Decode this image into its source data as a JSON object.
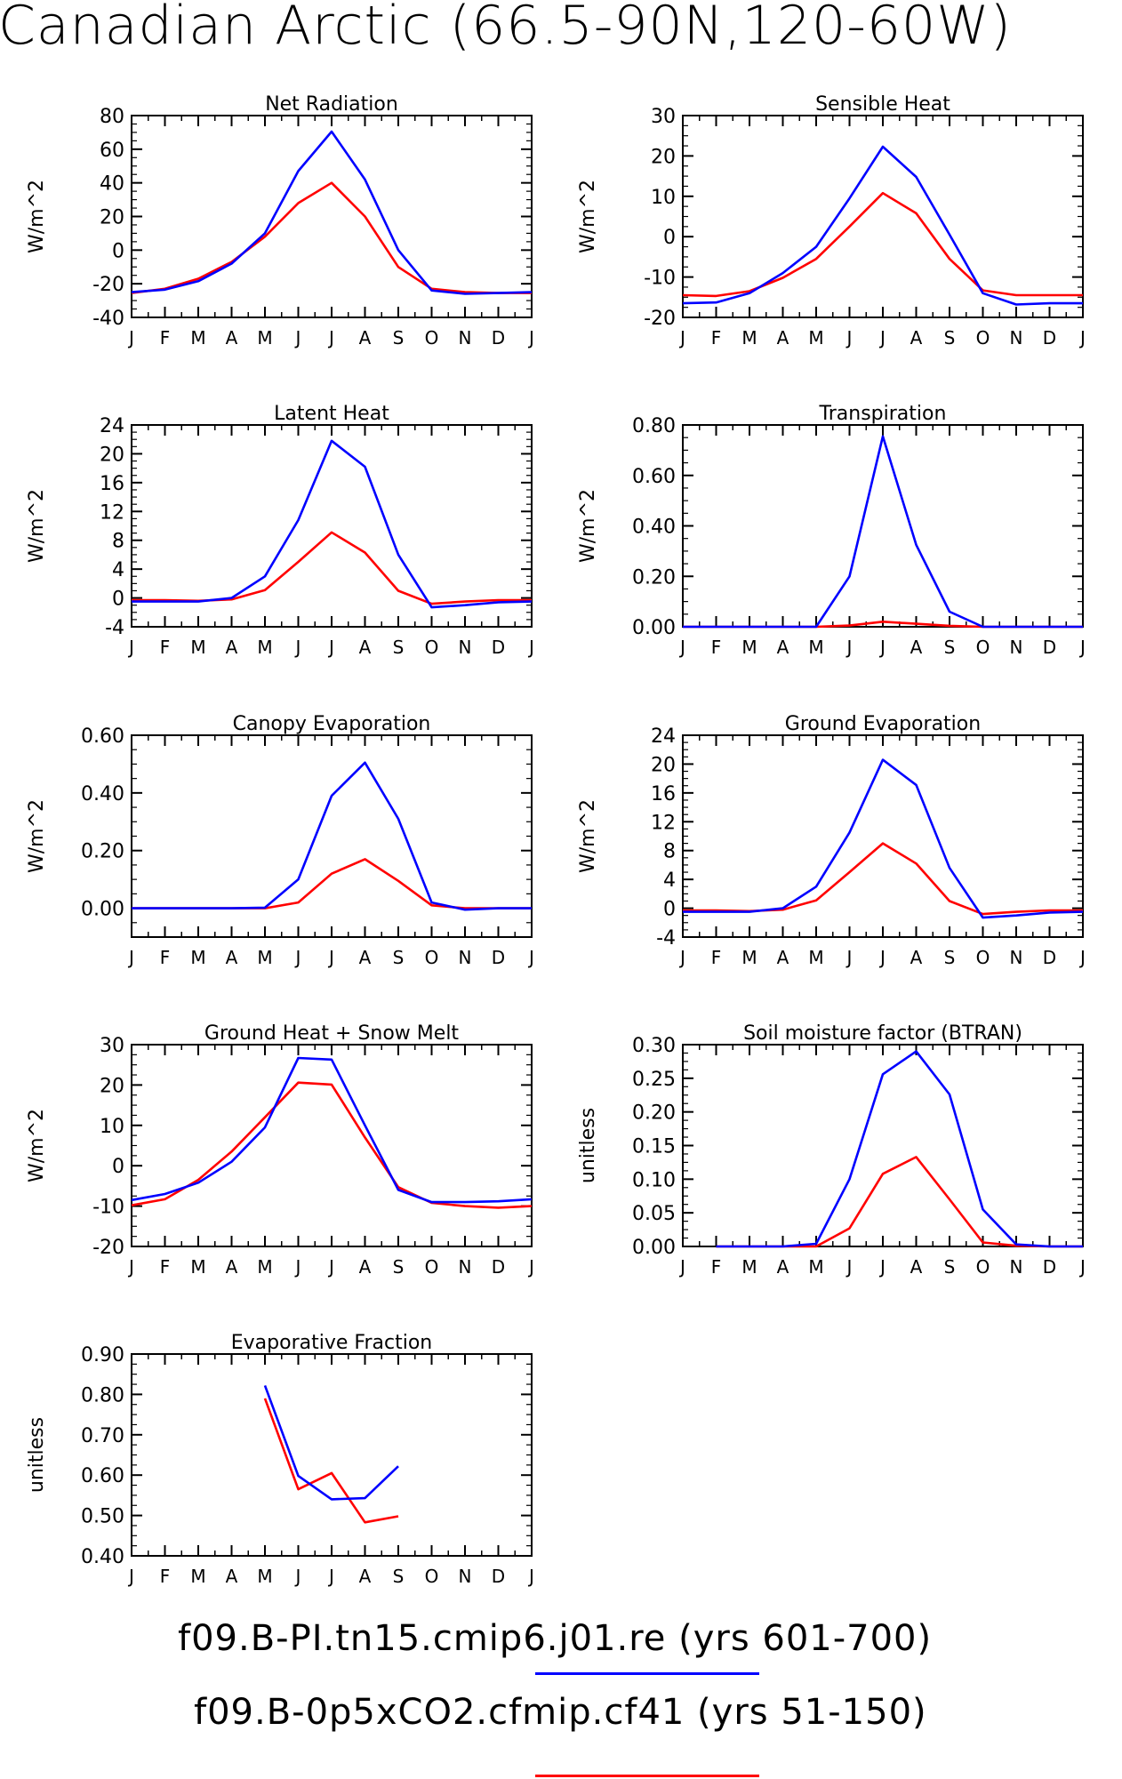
{
  "title": "Canadian Arctic (66.5-90N,120-60W)",
  "legend": [
    {
      "label": "f09.B-PI.tn15.cmip6.j01.re (yrs 601-700)",
      "color": "#0000ff"
    },
    {
      "label": "f09.B-0p5xCO2.cfmip.cf41 (yrs 51-150)",
      "color": "#ff0000"
    }
  ],
  "colors": {
    "run1": "#0000ff",
    "run2": "#ff0000"
  },
  "chart_data": [
    {
      "type": "line",
      "title": "Net Radiation",
      "ylabel": "W/m^2",
      "x": [
        "J",
        "F",
        "M",
        "A",
        "M",
        "J",
        "J",
        "A",
        "S",
        "O",
        "N",
        "D",
        "J"
      ],
      "ylim": [
        -40,
        80
      ],
      "yticks": [
        -40,
        -20,
        0,
        20,
        40,
        60,
        80
      ],
      "yticklabels": [
        "-40",
        "-20",
        "0",
        "20",
        "40",
        "60",
        "80"
      ],
      "series": [
        {
          "values": [
            -25,
            -23.5,
            -18.5,
            -8,
            10,
            47,
            70.5,
            42,
            0,
            -24,
            -26,
            -25.5,
            -25
          ]
        },
        {
          "values": [
            -25.5,
            -23,
            -17,
            -7,
            8,
            28,
            40,
            20,
            -10,
            -23,
            -25,
            -25.5,
            -25.5
          ]
        }
      ]
    },
    {
      "type": "line",
      "title": "Sensible Heat",
      "ylabel": "W/m^2",
      "x": [
        "J",
        "F",
        "M",
        "A",
        "M",
        "J",
        "J",
        "A",
        "S",
        "O",
        "N",
        "D",
        "J"
      ],
      "ylim": [
        -20,
        30
      ],
      "yticks": [
        -20,
        -10,
        0,
        10,
        20,
        30
      ],
      "yticklabels": [
        "-20",
        "-10",
        "0",
        "10",
        "20",
        "30"
      ],
      "series": [
        {
          "values": [
            -16.5,
            -16.3,
            -14,
            -9,
            -2.5,
            9.5,
            22.3,
            14.8,
            0.5,
            -14,
            -16.8,
            -16.5,
            -16.5
          ]
        },
        {
          "values": [
            -14.5,
            -14.7,
            -13.5,
            -10.2,
            -5.5,
            2.5,
            10.8,
            5.8,
            -5.5,
            -13.3,
            -14.5,
            -14.5,
            -14.5
          ]
        }
      ]
    },
    {
      "type": "line",
      "title": "Latent Heat",
      "ylabel": "W/m^2",
      "x": [
        "J",
        "F",
        "M",
        "A",
        "M",
        "J",
        "J",
        "A",
        "S",
        "O",
        "N",
        "D",
        "J"
      ],
      "ylim": [
        -4,
        24
      ],
      "yticks": [
        -4,
        0,
        4,
        8,
        12,
        16,
        20,
        24
      ],
      "yticklabels": [
        "-4",
        "0",
        "4",
        "8",
        "12",
        "16",
        "20",
        "24"
      ],
      "series": [
        {
          "values": [
            -0.5,
            -0.5,
            -0.5,
            0,
            3,
            10.8,
            21.8,
            18.2,
            6,
            -1.3,
            -1,
            -0.6,
            -0.5
          ]
        },
        {
          "values": [
            -0.3,
            -0.3,
            -0.4,
            -0.2,
            1.1,
            5,
            9.1,
            6.3,
            1,
            -0.8,
            -0.5,
            -0.3,
            -0.3
          ]
        }
      ]
    },
    {
      "type": "line",
      "title": "Transpiration",
      "ylabel": "W/m^2",
      "x": [
        "J",
        "F",
        "M",
        "A",
        "M",
        "J",
        "J",
        "A",
        "S",
        "O",
        "N",
        "D",
        "J"
      ],
      "ylim": [
        0,
        0.8
      ],
      "yticks": [
        0,
        0.2,
        0.4,
        0.6,
        0.8
      ],
      "yticklabels": [
        "0.00",
        "0.20",
        "0.40",
        "0.60",
        "0.80"
      ],
      "series": [
        {
          "values": [
            0,
            0,
            0,
            0,
            0,
            0.2,
            0.755,
            0.325,
            0.06,
            0,
            0,
            0,
            0
          ]
        },
        {
          "values": [
            0,
            0,
            0,
            0,
            0,
            0.005,
            0.02,
            0.012,
            0.004,
            0,
            0,
            0,
            0
          ]
        }
      ]
    },
    {
      "type": "line",
      "title": "Canopy Evaporation",
      "ylabel": "W/m^2",
      "x": [
        "J",
        "F",
        "M",
        "A",
        "M",
        "J",
        "J",
        "A",
        "S",
        "O",
        "N",
        "D",
        "J"
      ],
      "ylim": [
        -0.1,
        0.6
      ],
      "yticks": [
        0,
        0.2,
        0.4,
        0.6
      ],
      "yticklabels": [
        "0.00",
        "0.20",
        "0.40",
        "0.60"
      ],
      "series": [
        {
          "values": [
            0,
            0,
            0,
            0,
            0.002,
            0.1,
            0.39,
            0.505,
            0.31,
            0.02,
            -0.005,
            0,
            0
          ]
        },
        {
          "values": [
            0,
            0,
            0,
            0,
            0,
            0.02,
            0.12,
            0.17,
            0.095,
            0.01,
            0,
            0,
            0
          ]
        }
      ]
    },
    {
      "type": "line",
      "title": "Ground Evaporation",
      "ylabel": "W/m^2",
      "x": [
        "J",
        "F",
        "M",
        "A",
        "M",
        "J",
        "J",
        "A",
        "S",
        "O",
        "N",
        "D",
        "J"
      ],
      "ylim": [
        -4,
        24
      ],
      "yticks": [
        -4,
        0,
        4,
        8,
        12,
        16,
        20,
        24
      ],
      "yticklabels": [
        "-4",
        "0",
        "4",
        "8",
        "12",
        "16",
        "20",
        "24"
      ],
      "series": [
        {
          "values": [
            -0.5,
            -0.5,
            -0.5,
            0,
            3,
            10.5,
            20.6,
            17.1,
            5.6,
            -1.3,
            -1,
            -0.6,
            -0.5
          ]
        },
        {
          "values": [
            -0.3,
            -0.3,
            -0.4,
            -0.2,
            1.1,
            5,
            9,
            6.2,
            1,
            -0.8,
            -0.5,
            -0.3,
            -0.3
          ]
        }
      ]
    },
    {
      "type": "line",
      "title": "Ground Heat + Snow Melt",
      "ylabel": "W/m^2",
      "x": [
        "J",
        "F",
        "M",
        "A",
        "M",
        "J",
        "J",
        "A",
        "S",
        "O",
        "N",
        "D",
        "J"
      ],
      "ylim": [
        -20,
        30
      ],
      "yticks": [
        -20,
        -10,
        0,
        10,
        20,
        30
      ],
      "yticklabels": [
        "-20",
        "-10",
        "0",
        "10",
        "20",
        "30"
      ],
      "series": [
        {
          "values": [
            -8.5,
            -7,
            -4.2,
            1,
            9.5,
            26.7,
            26.3,
            10,
            -6,
            -9,
            -9,
            -8.8,
            -8.3
          ]
        },
        {
          "values": [
            -9.8,
            -8.3,
            -3.5,
            3.5,
            12,
            20.6,
            20.1,
            7,
            -5.3,
            -9.2,
            -10,
            -10.4,
            -10
          ]
        }
      ]
    },
    {
      "type": "line",
      "title": "Soil moisture factor (BTRAN)",
      "ylabel": "unitless",
      "x": [
        "J",
        "F",
        "M",
        "A",
        "M",
        "J",
        "J",
        "A",
        "S",
        "O",
        "N",
        "D",
        "J"
      ],
      "ylim": [
        0,
        0.3
      ],
      "yticks": [
        0,
        0.05,
        0.1,
        0.15,
        0.2,
        0.25,
        0.3
      ],
      "yticklabels": [
        "0.00",
        "0.05",
        "0.10",
        "0.15",
        "0.20",
        "0.25",
        "0.30"
      ],
      "series": [
        {
          "values": [
            null,
            0,
            0,
            0,
            0.004,
            0.1,
            0.256,
            0.29,
            0.226,
            0.055,
            0.003,
            0,
            0
          ]
        },
        {
          "values": [
            null,
            0,
            0,
            0,
            0,
            0.027,
            0.108,
            0.133,
            0.07,
            0.006,
            0.001,
            0,
            0
          ]
        }
      ]
    },
    {
      "type": "line",
      "title": "Evaporative Fraction",
      "ylabel": "unitless",
      "x": [
        "J",
        "F",
        "M",
        "A",
        "M",
        "J",
        "J",
        "A",
        "S",
        "O",
        "N",
        "D",
        "J"
      ],
      "ylim": [
        0.4,
        0.9
      ],
      "yticks": [
        0.4,
        0.5,
        0.6,
        0.7,
        0.8,
        0.9
      ],
      "yticklabels": [
        "0.40",
        "0.50",
        "0.60",
        "0.70",
        "0.80",
        "0.90"
      ],
      "series": [
        {
          "values": [
            null,
            null,
            null,
            null,
            0.822,
            0.598,
            0.54,
            0.543,
            0.622,
            null,
            null,
            null,
            null
          ]
        },
        {
          "values": [
            null,
            null,
            null,
            null,
            0.79,
            0.565,
            0.605,
            0.483,
            0.498,
            null,
            null,
            null,
            null
          ]
        }
      ]
    }
  ]
}
